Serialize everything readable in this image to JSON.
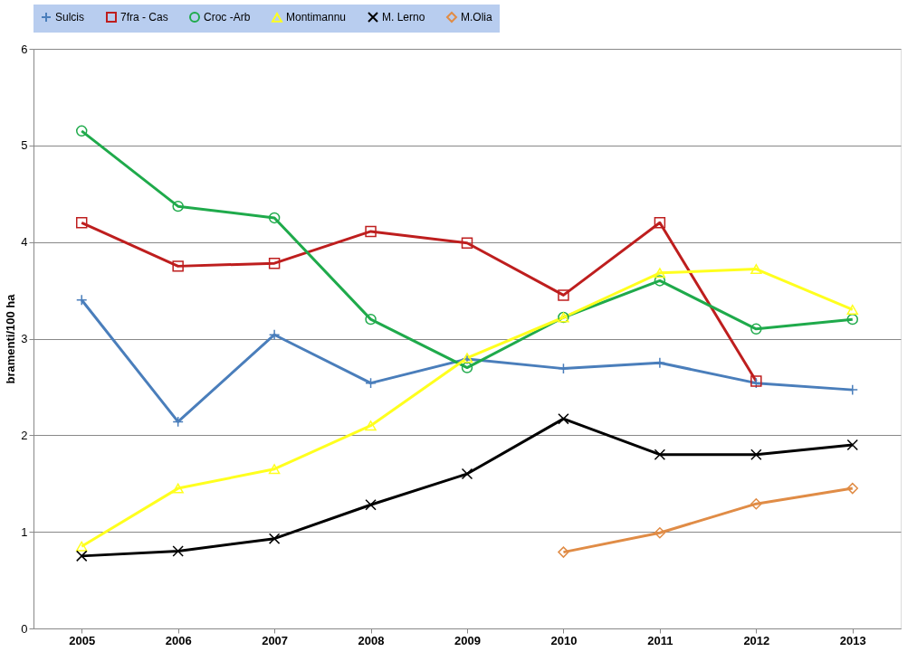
{
  "chart_data": {
    "type": "line",
    "ylabel": "bramenti/100 ha",
    "categories": [
      "2005",
      "2006",
      "2007",
      "2008",
      "2009",
      "2010",
      "2011",
      "2012",
      "2013"
    ],
    "ylim": [
      0,
      6
    ],
    "yticks": [
      0,
      1,
      2,
      3,
      4,
      5,
      6
    ],
    "grid": "y",
    "legend": "top",
    "line_style": "solid",
    "series": [
      {
        "name": "Sulcis",
        "color": "#4a7ebb",
        "marker": "plus",
        "values": [
          3.4,
          2.14,
          3.04,
          2.54,
          2.79,
          2.69,
          2.75,
          2.54,
          2.47
        ]
      },
      {
        "name": "7fra - Cas",
        "color": "#be1e1e",
        "marker": "square",
        "values": [
          4.2,
          3.75,
          3.78,
          4.11,
          3.99,
          3.45,
          4.2,
          2.56,
          null
        ]
      },
      {
        "name": "Croc -Arb",
        "color": "#1faa4b",
        "marker": "circle",
        "values": [
          5.15,
          4.37,
          4.25,
          3.2,
          2.7,
          3.22,
          3.6,
          3.1,
          3.2
        ]
      },
      {
        "name": "Montimannu",
        "color": "#ffff1e",
        "marker": "triangle",
        "values": [
          0.85,
          1.45,
          1.65,
          2.1,
          2.8,
          3.22,
          3.68,
          3.72,
          3.3
        ]
      },
      {
        "name": "M. Lerno",
        "color": "#000000",
        "marker": "cross",
        "values": [
          0.75,
          0.8,
          0.93,
          1.28,
          1.6,
          2.17,
          1.8,
          1.8,
          1.9
        ]
      },
      {
        "name": "M.Olia",
        "color": "#e08c46",
        "marker": "diamond",
        "values": [
          null,
          null,
          null,
          null,
          null,
          0.79,
          0.99,
          1.29,
          1.45
        ]
      }
    ]
  }
}
